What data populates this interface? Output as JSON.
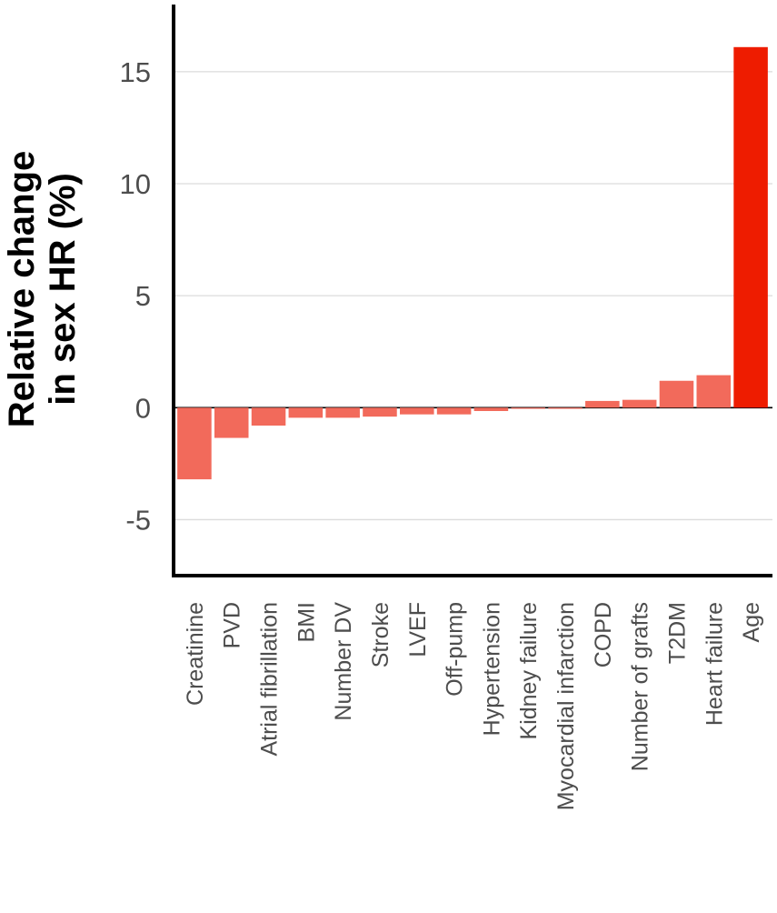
{
  "chart_data": {
    "type": "bar",
    "title": "",
    "xlabel": "",
    "ylabel": [
      "Relative change",
      "in sex HR (%)"
    ],
    "ylim": [
      -7.5,
      18
    ],
    "yticks": [
      -5,
      0,
      5,
      10,
      15
    ],
    "ytick_labels": [
      "-5",
      "0",
      "5",
      "10",
      "15"
    ],
    "grid": "horizontal major",
    "legend": "none",
    "categories": [
      "Creatinine",
      "PVD",
      "Atrial fibrillation",
      "BMI",
      "Number DV",
      "Stroke",
      "LVEF",
      "Off-pump",
      "Hypertension",
      "Kidney failure",
      "Myocardial infarction",
      "COPD",
      "Number of grafts",
      "T2DM",
      "Heart failure",
      "Age"
    ],
    "values": [
      -3.2,
      -1.35,
      -0.8,
      -0.45,
      -0.45,
      -0.4,
      -0.3,
      -0.3,
      -0.15,
      -0.05,
      -0.05,
      0.3,
      0.35,
      1.2,
      1.45,
      16.1
    ],
    "colors": {
      "bar_low": "#f26a5b",
      "bar_high": "#ee1c00",
      "grid": "#dcdcdc",
      "axis": "#000000"
    }
  }
}
